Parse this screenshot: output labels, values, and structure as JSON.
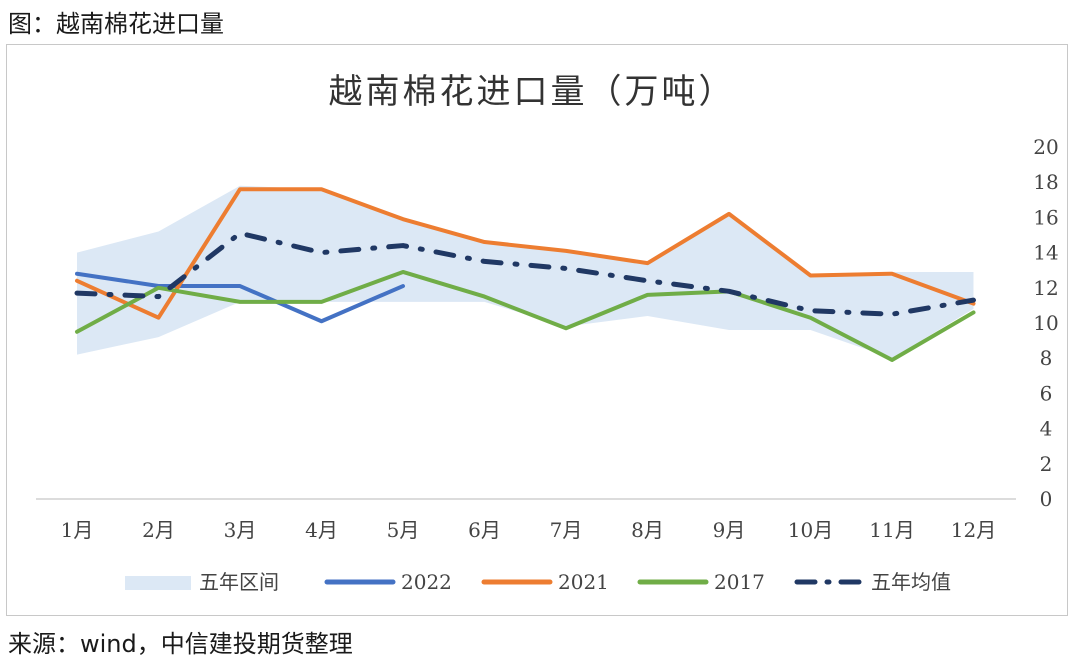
{
  "figure_caption": "图：越南棉花进口量",
  "source_note": "来源：wind，中信建投期货整理",
  "chart_data": {
    "type": "line",
    "title": "越南棉花进口量（万吨）",
    "categories": [
      "1月",
      "2月",
      "3月",
      "4月",
      "5月",
      "6月",
      "7月",
      "8月",
      "9月",
      "10月",
      "11月",
      "12月"
    ],
    "ylim": [
      0,
      20
    ],
    "yticks": [
      "0",
      "2",
      "4",
      "6",
      "8",
      "10",
      "12",
      "14",
      "16",
      "18",
      "20"
    ],
    "y_axis_side": "right",
    "grid": false,
    "legend_position": "bottom",
    "band": {
      "name": "五年区间",
      "color": "#dce8f5",
      "low": [
        8.2,
        9.2,
        11.2,
        11.2,
        11.2,
        11.2,
        9.8,
        10.4,
        9.6,
        9.6,
        8.0,
        10.8
      ],
      "high": [
        14.0,
        15.2,
        17.8,
        17.6,
        16.0,
        14.6,
        14.2,
        13.5,
        16.2,
        12.8,
        12.9,
        12.9
      ]
    },
    "series": [
      {
        "name": "2022",
        "color": "#4472c4",
        "dash": "solid",
        "values": [
          12.8,
          12.1,
          12.1,
          10.1,
          12.1,
          null,
          null,
          null,
          null,
          null,
          null,
          null
        ]
      },
      {
        "name": "2021",
        "color": "#ed7d31",
        "dash": "solid",
        "values": [
          12.4,
          10.3,
          17.6,
          17.6,
          15.9,
          14.6,
          14.1,
          13.4,
          16.2,
          12.7,
          12.8,
          11.1
        ]
      },
      {
        "name": "2017",
        "color": "#70ad47",
        "dash": "solid",
        "values": [
          9.5,
          12.0,
          11.2,
          11.2,
          12.9,
          11.5,
          9.7,
          11.6,
          11.8,
          10.3,
          7.9,
          10.6
        ]
      },
      {
        "name": "五年均值",
        "color": "#203864",
        "dash": "dashdot",
        "values": [
          11.7,
          11.5,
          15.1,
          14.0,
          14.4,
          13.5,
          13.1,
          12.4,
          11.8,
          10.7,
          10.5,
          11.3
        ]
      }
    ]
  }
}
